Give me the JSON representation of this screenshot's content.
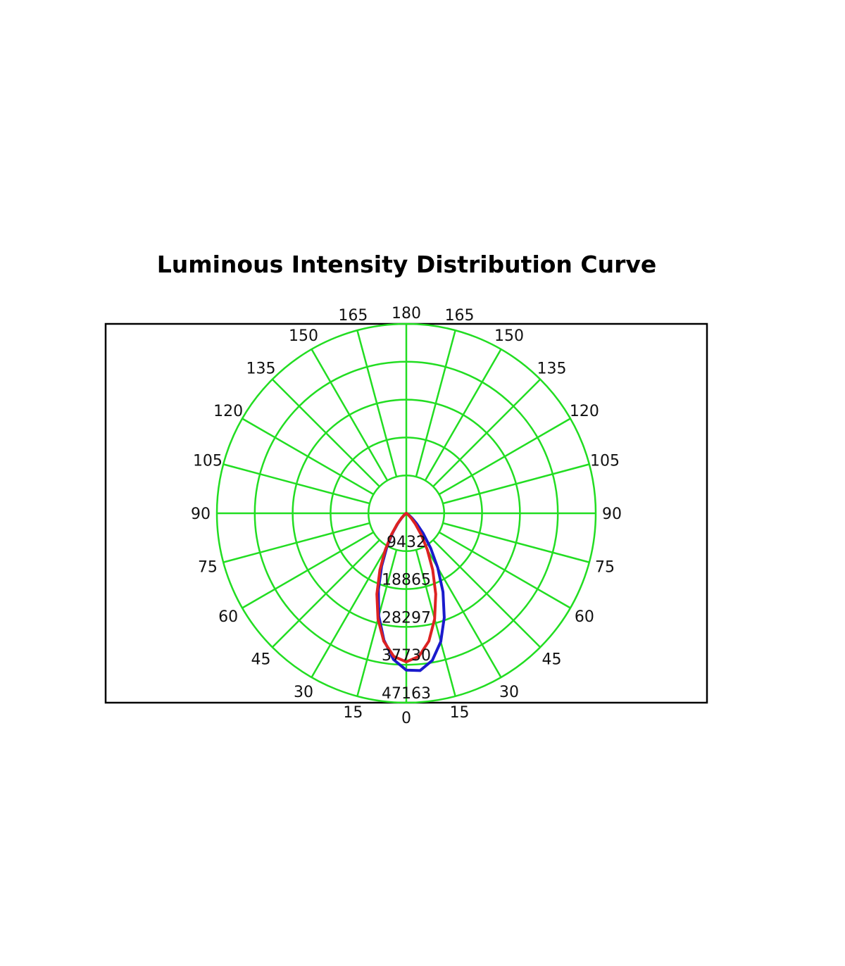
{
  "chart_data": {
    "type": "polar-line",
    "title": "Luminous Intensity Distribution Curve",
    "angle_tick_labels_left": [
      "0",
      "15",
      "30",
      "45",
      "60",
      "75",
      "90",
      "105",
      "120",
      "135",
      "150",
      "165",
      "180"
    ],
    "angle_tick_labels_right": [
      "15",
      "30",
      "45",
      "60",
      "75",
      "90",
      "105",
      "120",
      "135",
      "150",
      "165"
    ],
    "radial_tick_labels": [
      "9432",
      "18865",
      "28297",
      "37730",
      "47163"
    ],
    "radial_ticks": [
      9432,
      18865,
      28297,
      37730,
      47163
    ],
    "rmax": 47163,
    "grid": true,
    "grid_color": "#22dd22",
    "angles": [
      -90,
      -85,
      -80,
      -75,
      -70,
      -65,
      -60,
      -55,
      -50,
      -45,
      -40,
      -35,
      -30,
      -25,
      -20,
      -15,
      -10,
      -5,
      0,
      5,
      10,
      15,
      20,
      25,
      30,
      35,
      40,
      45,
      50,
      55,
      60,
      65,
      70,
      75,
      80,
      85,
      90
    ],
    "series": [
      {
        "color": "#1a1acc",
        "values": [
          0,
          0,
          0,
          0,
          2,
          15,
          70,
          245,
          680,
          1580,
          3240,
          5890,
          9680,
          14580,
          20340,
          26470,
          32070,
          36540,
          39060,
          39310,
          37210,
          33100,
          27650,
          21610,
          15680,
          10590,
          6520,
          3670,
          1840,
          820,
          300,
          95,
          20,
          3,
          0,
          0,
          0
        ]
      },
      {
        "color": "#dd2222",
        "values": [
          0,
          0,
          0,
          0,
          5,
          20,
          85,
          280,
          760,
          1750,
          3550,
          6400,
          10440,
          15570,
          21410,
          27260,
          32340,
          35780,
          37000,
          35780,
          32340,
          27260,
          21410,
          15570,
          10440,
          6400,
          3550,
          1750,
          760,
          280,
          85,
          20,
          5,
          0,
          0,
          0,
          0
        ]
      }
    ]
  }
}
